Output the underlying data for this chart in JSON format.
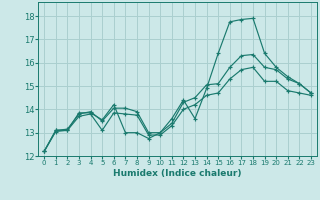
{
  "xlabel": "Humidex (Indice chaleur)",
  "background_color": "#cce8e8",
  "grid_color": "#aacfcf",
  "line_color": "#1a7a6e",
  "xlim": [
    -0.5,
    23.5
  ],
  "ylim": [
    12,
    18.6
  ],
  "yticks": [
    12,
    13,
    14,
    15,
    16,
    17,
    18
  ],
  "xticks": [
    0,
    1,
    2,
    3,
    4,
    5,
    6,
    7,
    8,
    9,
    10,
    11,
    12,
    13,
    14,
    15,
    16,
    17,
    18,
    19,
    20,
    21,
    22,
    23
  ],
  "lines": [
    {
      "x": [
        0,
        1,
        2,
        3,
        4,
        5,
        6,
        7,
        8,
        9,
        10,
        11,
        12,
        13,
        14,
        15,
        16,
        17,
        18,
        19,
        20,
        21,
        22,
        23
      ],
      "y": [
        12.2,
        13.1,
        13.1,
        13.85,
        13.85,
        13.55,
        14.2,
        13.0,
        13.0,
        12.75,
        13.0,
        13.6,
        14.4,
        13.6,
        14.9,
        16.4,
        17.75,
        17.85,
        17.9,
        16.4,
        15.8,
        15.4,
        15.1,
        14.7
      ]
    },
    {
      "x": [
        0,
        1,
        2,
        3,
        4,
        5,
        6,
        7,
        8,
        9,
        10,
        11,
        12,
        13,
        14,
        15,
        16,
        17,
        18,
        19,
        20,
        21,
        22,
        23
      ],
      "y": [
        12.2,
        13.1,
        13.15,
        13.8,
        13.9,
        13.5,
        14.05,
        14.05,
        13.9,
        13.0,
        13.0,
        13.4,
        14.3,
        14.5,
        15.05,
        15.1,
        15.8,
        16.3,
        16.35,
        15.8,
        15.7,
        15.3,
        15.1,
        14.7
      ]
    },
    {
      "x": [
        0,
        1,
        2,
        3,
        4,
        5,
        6,
        7,
        8,
        9,
        10,
        11,
        12,
        13,
        14,
        15,
        16,
        17,
        18,
        19,
        20,
        21,
        22,
        23
      ],
      "y": [
        12.2,
        13.05,
        13.1,
        13.7,
        13.8,
        13.1,
        13.85,
        13.8,
        13.75,
        12.9,
        12.9,
        13.3,
        14.0,
        14.2,
        14.6,
        14.7,
        15.3,
        15.7,
        15.8,
        15.2,
        15.2,
        14.8,
        14.7,
        14.6
      ]
    }
  ]
}
